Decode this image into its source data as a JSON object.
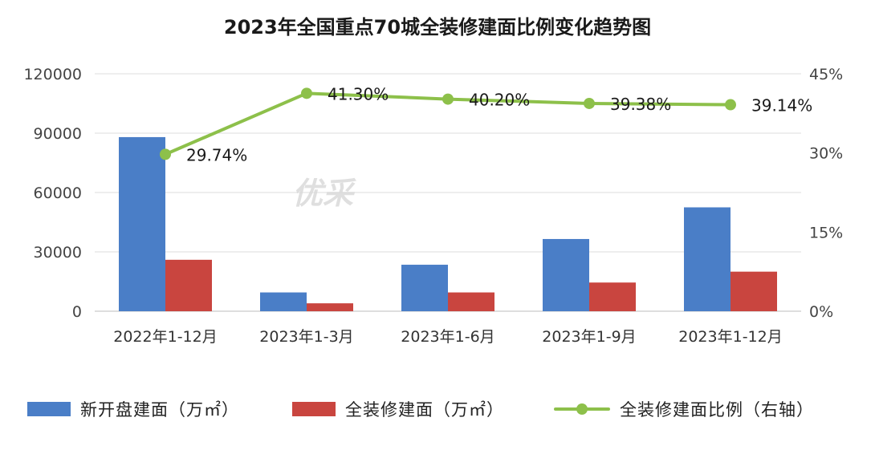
{
  "chart_data": {
    "type": "bar",
    "title": "2023年全国重点70城全装修建面比例变化趋势图",
    "categories": [
      "2022年1-12月",
      "2023年1-3月",
      "2023年1-6月",
      "2023年1-9月",
      "2023年1-12月"
    ],
    "series": [
      {
        "name": "新开盘建面（万㎡）",
        "type": "bar",
        "axis": "left",
        "color": "#4a7ec7",
        "values": [
          88000,
          9500,
          23500,
          36500,
          52500
        ]
      },
      {
        "name": "全装修建面（万㎡）",
        "type": "bar",
        "axis": "left",
        "color": "#c9453f",
        "values": [
          26000,
          4000,
          9500,
          14500,
          20000
        ]
      },
      {
        "name": "全装修建面比例（右轴）",
        "type": "line",
        "axis": "right",
        "color": "#8dc04a",
        "values": [
          29.74,
          41.3,
          40.2,
          39.38,
          39.14
        ],
        "labels": [
          "29.74%",
          "41.30%",
          "40.20%",
          "39.38%",
          "39.14%"
        ]
      }
    ],
    "y_left": {
      "min": 0,
      "max": 120000,
      "ticks": [
        "0",
        "30000",
        "60000",
        "90000",
        "120000"
      ]
    },
    "y_right": {
      "min": 0,
      "max": 45,
      "ticks": [
        "0%",
        "15%",
        "30%",
        "45%"
      ]
    },
    "grid": true,
    "legend_position": "bottom"
  },
  "watermark": "优采"
}
